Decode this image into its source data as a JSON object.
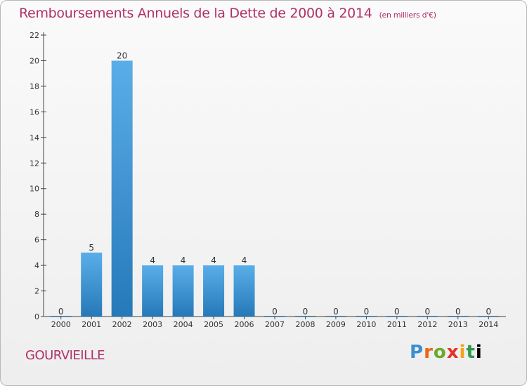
{
  "title": "Remboursements Annuels de la Dette de 2000 à 2014",
  "unit": "(en milliers d'€)",
  "commune": "GOURVIEILLE",
  "logo_text": "Proxiti",
  "colors": {
    "bar_light": "#5aaee8",
    "bar_dark": "#2679b8",
    "title": "#b0306a",
    "axis": "#444444"
  },
  "chart_data": {
    "type": "bar",
    "title": "Remboursements Annuels de la Dette de 2000 à 2014",
    "xlabel": "",
    "ylabel": "",
    "categories": [
      "2000",
      "2001",
      "2002",
      "2003",
      "2004",
      "2005",
      "2006",
      "2007",
      "2008",
      "2009",
      "2010",
      "2011",
      "2012",
      "2013",
      "2014"
    ],
    "values": [
      0,
      5,
      20,
      4,
      4,
      4,
      4,
      0,
      0,
      0,
      0,
      0,
      0,
      0,
      0
    ],
    "data_labels": [
      "0",
      "5",
      "20",
      "4",
      "4",
      "4",
      "4",
      "0",
      "0",
      "0",
      "0",
      "0",
      "0",
      "0",
      "0"
    ],
    "ylim": [
      0,
      22
    ],
    "yticks": [
      0,
      2,
      4,
      6,
      8,
      10,
      12,
      14,
      16,
      18,
      20,
      22
    ],
    "grid": false,
    "legend": "none"
  }
}
